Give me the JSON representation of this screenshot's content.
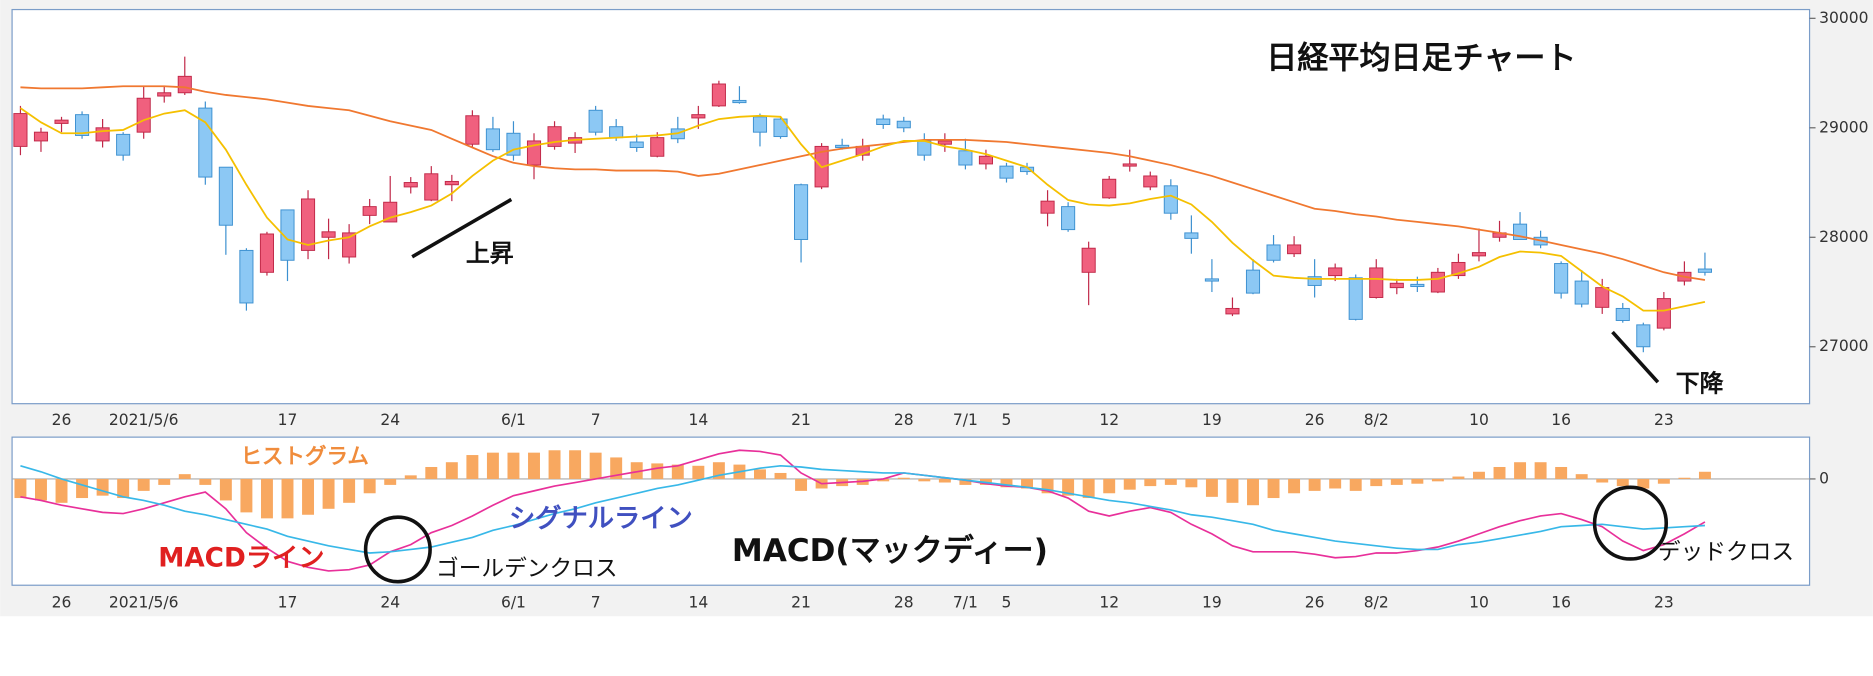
{
  "chart_data": [
    {
      "type": "candlestick",
      "title": "日経平均日足チャート",
      "annotations": [
        "上昇",
        "下降"
      ],
      "categories": [
        null,
        null,
        "26",
        null,
        null,
        null,
        "2021/5/6",
        null,
        null,
        null,
        null,
        null,
        null,
        "17",
        null,
        null,
        null,
        null,
        "24",
        null,
        null,
        null,
        null,
        null,
        "6/1",
        null,
        null,
        null,
        "7",
        null,
        null,
        null,
        null,
        "14",
        null,
        null,
        null,
        null,
        "21",
        null,
        null,
        null,
        null,
        "28",
        null,
        null,
        "7/1",
        null,
        "5",
        null,
        null,
        null,
        null,
        "12",
        null,
        null,
        null,
        null,
        "19",
        null,
        null,
        null,
        null,
        "26",
        null,
        null,
        "8/2",
        null,
        null,
        null,
        null,
        "10",
        null,
        null,
        null,
        "16",
        null,
        null,
        null,
        null,
        "23",
        null,
        null
      ],
      "open": [
        28830,
        28880,
        29040,
        29120,
        28880,
        28940,
        28960,
        29290,
        29320,
        29180,
        28640,
        27880,
        27680,
        28250,
        27880,
        28000,
        27820,
        28200,
        28140,
        28460,
        28340,
        28480,
        28850,
        28990,
        28950,
        28660,
        28830,
        28860,
        29160,
        29010,
        28870,
        28740,
        28990,
        29090,
        29200,
        29250,
        29100,
        29080,
        28480,
        28460,
        28840,
        28750,
        29080,
        29060,
        28880,
        28850,
        28790,
        28670,
        28650,
        28640,
        28220,
        28280,
        27680,
        28360,
        28650,
        28460,
        28470,
        28040,
        27620,
        27300,
        27700,
        27930,
        27850,
        27640,
        27650,
        27630,
        27450,
        27540,
        27570,
        27500,
        27650,
        27830,
        28000,
        28120,
        28000,
        27760,
        27600,
        27360,
        27350,
        27200,
        27170,
        27600,
        27710
      ],
      "high": [
        29200,
        29000,
        29100,
        29150,
        29080,
        28960,
        29380,
        29380,
        29650,
        29240,
        28640,
        27900,
        28050,
        28250,
        28430,
        28170,
        28120,
        28350,
        28560,
        28550,
        28650,
        28570,
        29160,
        29100,
        29060,
        28950,
        29060,
        28960,
        29200,
        29080,
        28940,
        28960,
        29100,
        29200,
        29430,
        29380,
        29130,
        29100,
        28490,
        28860,
        28900,
        28900,
        29120,
        29100,
        28950,
        28950,
        28900,
        28800,
        28680,
        28680,
        28430,
        28320,
        27960,
        28560,
        28800,
        28600,
        28530,
        28200,
        27800,
        27450,
        27800,
        28020,
        28010,
        27800,
        27760,
        27660,
        27800,
        27620,
        27640,
        27720,
        27850,
        28080,
        28150,
        28230,
        28060,
        27780,
        27700,
        27620,
        27400,
        27220,
        27500,
        27780,
        27860
      ],
      "low": [
        28750,
        28780,
        28960,
        28900,
        28820,
        28700,
        28900,
        29230,
        29300,
        28480,
        27840,
        27330,
        27650,
        27600,
        27800,
        27800,
        27760,
        28120,
        28140,
        28400,
        28330,
        28330,
        28820,
        28780,
        28700,
        28530,
        28800,
        28770,
        28930,
        28880,
        28780,
        28730,
        28860,
        28990,
        29190,
        29220,
        28830,
        28900,
        27770,
        28440,
        28800,
        28700,
        28990,
        28960,
        28700,
        28780,
        28620,
        28620,
        28500,
        28570,
        28100,
        28050,
        27380,
        28350,
        28600,
        28430,
        28160,
        27850,
        27500,
        27280,
        27480,
        27770,
        27820,
        27450,
        27600,
        27240,
        27440,
        27480,
        27500,
        27490,
        27620,
        27780,
        27960,
        27990,
        27900,
        27440,
        27360,
        27300,
        27220,
        26950,
        27150,
        27560,
        27650
      ],
      "close": [
        29130,
        28960,
        29070,
        28930,
        29000,
        28750,
        29270,
        29320,
        29470,
        28550,
        28110,
        27400,
        28030,
        27790,
        28350,
        28050,
        28040,
        28280,
        28320,
        28500,
        28580,
        28510,
        29110,
        28800,
        28750,
        28880,
        29010,
        28910,
        28960,
        28910,
        28820,
        28910,
        28900,
        29120,
        29400,
        29230,
        28960,
        28920,
        27980,
        28830,
        28820,
        28830,
        29030,
        29000,
        28750,
        28880,
        28660,
        28740,
        28540,
        28600,
        28330,
        28070,
        27900,
        28530,
        28670,
        28560,
        28220,
        27990,
        27600,
        27350,
        27490,
        27790,
        27930,
        27560,
        27720,
        27250,
        27720,
        27580,
        27550,
        27680,
        27770,
        27860,
        28040,
        27980,
        27930,
        27490,
        27390,
        27540,
        27240,
        27000,
        27440,
        27680,
        27680
      ],
      "up_color": "#f0607e",
      "down_color": "#8cc8f4",
      "series": [
        {
          "color": "#f07830",
          "values": [
            29370,
            29360,
            29360,
            29360,
            29370,
            29380,
            29380,
            29380,
            29370,
            29330,
            29300,
            29280,
            29260,
            29230,
            29200,
            29180,
            29160,
            29110,
            29060,
            29020,
            28980,
            28900,
            28820,
            28740,
            28680,
            28650,
            28630,
            28620,
            28620,
            28610,
            28610,
            28610,
            28600,
            28560,
            28580,
            28620,
            28660,
            28700,
            28740,
            28780,
            28810,
            28830,
            28850,
            28870,
            28890,
            28890,
            28890,
            28880,
            28870,
            28850,
            28830,
            28810,
            28790,
            28770,
            28740,
            28700,
            28660,
            28610,
            28560,
            28500,
            28440,
            28380,
            28320,
            28260,
            28240,
            28210,
            28190,
            28160,
            28140,
            28120,
            28100,
            28070,
            28040,
            28010,
            27970,
            27930,
            27890,
            27850,
            27800,
            27740,
            27680,
            27640,
            27610
          ]
        },
        {
          "color": "#f5c000",
          "values": [
            29180,
            29050,
            28950,
            28950,
            28970,
            28980,
            29070,
            29130,
            29160,
            29050,
            28800,
            28480,
            28180,
            27980,
            27930,
            27970,
            28000,
            28100,
            28180,
            28230,
            28290,
            28400,
            28560,
            28700,
            28800,
            28840,
            28870,
            28890,
            28900,
            28910,
            28920,
            28930,
            28950,
            29020,
            29080,
            29100,
            29110,
            29100,
            28850,
            28640,
            28700,
            28760,
            28830,
            28880,
            28880,
            28830,
            28800,
            28760,
            28700,
            28640,
            28480,
            28340,
            28300,
            28290,
            28310,
            28350,
            28380,
            28300,
            28140,
            27950,
            27790,
            27650,
            27630,
            27620,
            27620,
            27620,
            27620,
            27610,
            27610,
            27620,
            27670,
            27730,
            27820,
            27870,
            27860,
            27830,
            27690,
            27550,
            27460,
            27330,
            27330,
            27370,
            27410
          ]
        }
      ],
      "ylim": [
        26480,
        30080
      ],
      "yticks": [
        27000,
        28000,
        29000,
        30000
      ],
      "grid": false
    },
    {
      "type": "macd",
      "title": "MACD(マックディー)",
      "annotations": [
        "ゴールデンクロス",
        "デッドクロス"
      ],
      "categories": [
        null,
        null,
        "26",
        null,
        null,
        null,
        "2021/5/6",
        null,
        null,
        null,
        null,
        null,
        null,
        "17",
        null,
        null,
        null,
        null,
        "24",
        null,
        null,
        null,
        null,
        null,
        "6/1",
        null,
        null,
        null,
        "7",
        null,
        null,
        null,
        null,
        "14",
        null,
        null,
        null,
        null,
        "21",
        null,
        null,
        null,
        null,
        "28",
        null,
        null,
        "7/1",
        null,
        "5",
        null,
        null,
        null,
        null,
        "12",
        null,
        null,
        null,
        null,
        "19",
        null,
        null,
        null,
        null,
        "26",
        null,
        null,
        "8/2",
        null,
        null,
        null,
        null,
        "10",
        null,
        null,
        null,
        "16",
        null,
        null,
        null,
        null,
        "23",
        null,
        null
      ],
      "series": [
        {
          "name": "ヒストグラム",
          "type": "bar",
          "color": "#f8a860",
          "values": [
            -80,
            -90,
            -100,
            -80,
            -70,
            -80,
            -50,
            -25,
            20,
            -25,
            -90,
            -140,
            -165,
            -165,
            -150,
            -125,
            -100,
            -60,
            -25,
            15,
            50,
            70,
            100,
            110,
            110,
            110,
            120,
            120,
            110,
            90,
            70,
            65,
            60,
            55,
            70,
            60,
            40,
            25,
            -50,
            -40,
            -30,
            -25,
            -10,
            5,
            -10,
            -15,
            -25,
            -25,
            -35,
            -40,
            -60,
            -70,
            -80,
            -60,
            -45,
            -30,
            -25,
            -35,
            -75,
            -100,
            -110,
            -80,
            -60,
            -50,
            -40,
            -50,
            -30,
            -25,
            -20,
            -10,
            10,
            30,
            50,
            70,
            70,
            50,
            20,
            -15,
            -30,
            -40,
            -20,
            5,
            30
          ]
        },
        {
          "name": "MACDライン",
          "type": "line",
          "color": "#e8309a",
          "values": [
            -75,
            -90,
            -110,
            -125,
            -140,
            -145,
            -125,
            -100,
            -75,
            -55,
            -125,
            -225,
            -290,
            -345,
            -370,
            -385,
            -380,
            -360,
            -305,
            -275,
            -225,
            -195,
            -155,
            -110,
            -70,
            -50,
            -30,
            -15,
            0,
            15,
            30,
            45,
            55,
            80,
            105,
            120,
            115,
            100,
            25,
            -20,
            -15,
            -10,
            0,
            25,
            15,
            5,
            -5,
            -20,
            -30,
            -35,
            -50,
            -80,
            -135,
            -155,
            -135,
            -120,
            -140,
            -190,
            -230,
            -280,
            -305,
            -305,
            -305,
            -315,
            -330,
            -325,
            -310,
            -310,
            -300,
            -285,
            -260,
            -230,
            -200,
            -175,
            -155,
            -145,
            -170,
            -200,
            -260,
            -300,
            -275,
            -230,
            -180
          ]
        },
        {
          "name": "シグナルライン",
          "type": "line",
          "color": "#38b8e8",
          "values": [
            55,
            30,
            0,
            -25,
            -50,
            -75,
            -90,
            -110,
            -135,
            -150,
            -170,
            -190,
            -210,
            -240,
            -260,
            -280,
            -295,
            -310,
            -305,
            -295,
            -285,
            -265,
            -245,
            -215,
            -195,
            -170,
            -145,
            -125,
            -100,
            -80,
            -60,
            -40,
            -25,
            -5,
            15,
            30,
            45,
            55,
            50,
            40,
            35,
            30,
            25,
            25,
            15,
            5,
            -5,
            -15,
            -25,
            -35,
            -45,
            -60,
            -75,
            -90,
            -100,
            -115,
            -130,
            -150,
            -160,
            -175,
            -190,
            -215,
            -230,
            -245,
            -260,
            -270,
            -280,
            -290,
            -295,
            -295,
            -275,
            -265,
            -250,
            -235,
            -220,
            -200,
            -195,
            -190,
            -200,
            -210,
            -205,
            -200,
            -195
          ]
        }
      ],
      "ylim": [
        -445,
        175
      ],
      "yticks": [
        0
      ]
    }
  ]
}
